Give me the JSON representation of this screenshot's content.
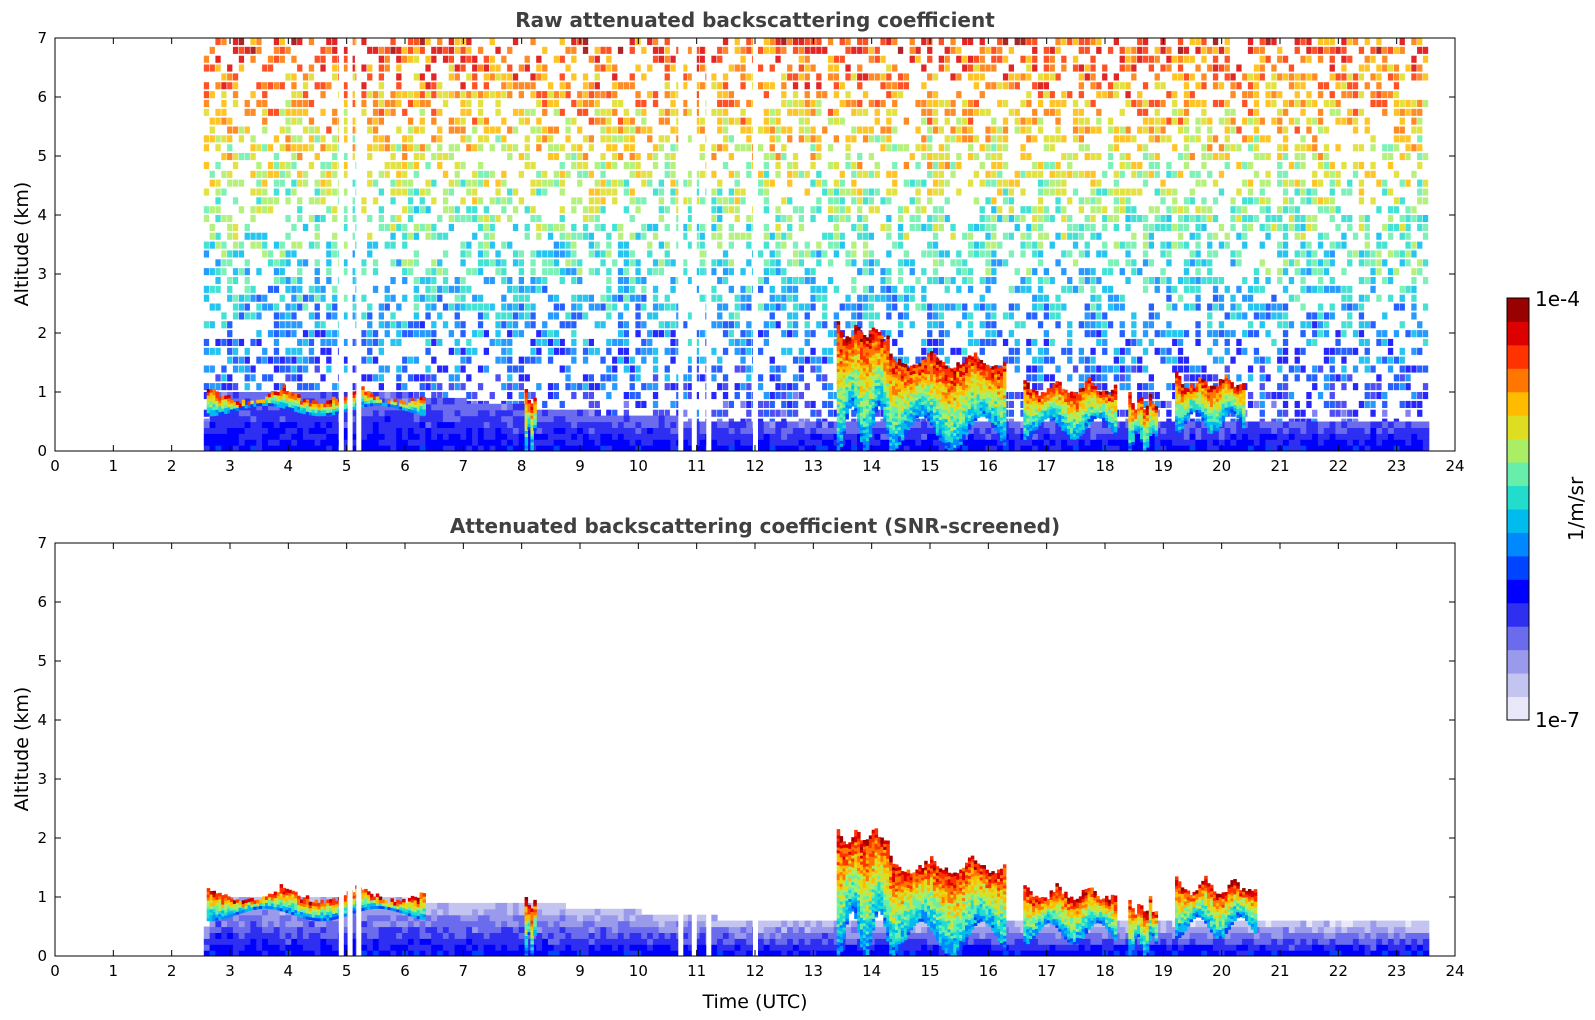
{
  "chart_data": [
    {
      "type": "heatmap",
      "title": "Raw attenuated backscattering coefficient",
      "xlabel": "",
      "ylabel": "Altitude (km)",
      "xlim": [
        0,
        24
      ],
      "ylim": [
        0,
        7
      ],
      "xticks": [
        0,
        1,
        2,
        3,
        4,
        5,
        6,
        7,
        8,
        9,
        10,
        11,
        12,
        13,
        14,
        15,
        16,
        17,
        18,
        19,
        20,
        21,
        22,
        23,
        24
      ],
      "yticks": [
        0,
        1,
        2,
        3,
        4,
        5,
        6,
        7
      ],
      "data_time_range": [
        2.55,
        23.55
      ],
      "missing_data_times": [
        4.9,
        5.05,
        5.2,
        10.72,
        10.95,
        11.2,
        12.0
      ],
      "noisy_background": true,
      "boundary_layer_top_km": [
        [
          2.6,
          1.0
        ],
        [
          6.0,
          0.9
        ],
        [
          8.0,
          0.7
        ],
        [
          12.0,
          0.4
        ],
        [
          23.5,
          0.5
        ]
      ],
      "cloud_features": [
        {
          "t_start": 2.6,
          "t_end": 6.3,
          "base_km": 0.6,
          "top_km": 1.1
        },
        {
          "t_start": 8.05,
          "t_end": 8.25,
          "base_km": 0.0,
          "top_km": 1.05
        },
        {
          "t_start": 13.4,
          "t_end": 14.3,
          "base_km": 0.0,
          "top_km": 2.2
        },
        {
          "t_start": 14.3,
          "t_end": 16.3,
          "base_km": 0.0,
          "top_km": 1.7
        },
        {
          "t_start": 16.6,
          "t_end": 18.2,
          "base_km": 0.2,
          "top_km": 1.25
        },
        {
          "t_start": 18.4,
          "t_end": 18.9,
          "base_km": 0.0,
          "top_km": 1.0
        },
        {
          "t_start": 19.2,
          "t_end": 20.4,
          "base_km": 0.3,
          "top_km": 1.35
        }
      ]
    },
    {
      "type": "heatmap",
      "title": "Attenuated backscattering coefficient (SNR-screened)",
      "xlabel": "Time (UTC)",
      "ylabel": "Altitude (km)",
      "xlim": [
        0,
        24
      ],
      "ylim": [
        0,
        7
      ],
      "xticks": [
        0,
        1,
        2,
        3,
        4,
        5,
        6,
        7,
        8,
        9,
        10,
        11,
        12,
        13,
        14,
        15,
        16,
        17,
        18,
        19,
        20,
        21,
        22,
        23,
        24
      ],
      "yticks": [
        0,
        1,
        2,
        3,
        4,
        5,
        6,
        7
      ],
      "data_time_range": [
        2.55,
        23.55
      ],
      "missing_data_times": [
        4.9,
        5.05,
        5.2,
        10.72,
        10.95,
        11.2,
        12.0
      ],
      "noisy_background": false,
      "boundary_layer_top_km": [
        [
          2.6,
          1.0
        ],
        [
          6.0,
          0.9
        ],
        [
          8.0,
          0.85
        ],
        [
          10.0,
          0.7
        ],
        [
          12.0,
          0.55
        ],
        [
          23.5,
          0.5
        ]
      ],
      "cloud_features": [
        {
          "t_start": 2.6,
          "t_end": 6.3,
          "base_km": 0.6,
          "top_km": 1.2
        },
        {
          "t_start": 8.05,
          "t_end": 8.25,
          "base_km": 0.0,
          "top_km": 1.05
        },
        {
          "t_start": 13.4,
          "t_end": 14.3,
          "base_km": 0.0,
          "top_km": 2.2
        },
        {
          "t_start": 14.3,
          "t_end": 16.3,
          "base_km": 0.0,
          "top_km": 1.7
        },
        {
          "t_start": 16.6,
          "t_end": 18.2,
          "base_km": 0.2,
          "top_km": 1.25
        },
        {
          "t_start": 18.4,
          "t_end": 18.9,
          "base_km": 0.0,
          "top_km": 1.0
        },
        {
          "t_start": 19.2,
          "t_end": 20.6,
          "base_km": 0.3,
          "top_km": 1.35
        }
      ]
    }
  ],
  "colorbar": {
    "label": "1/m/sr",
    "min_label": "1e-7",
    "max_label": "1e-4",
    "scale": "log",
    "colors": [
      "#e8e8f8",
      "#c4c4f0",
      "#9a9aec",
      "#6b6bee",
      "#2f2ff2",
      "#0000ff",
      "#0044ff",
      "#0088ff",
      "#00bbee",
      "#22ddcc",
      "#66eeaa",
      "#aaee66",
      "#dddd22",
      "#ffbb00",
      "#ff7700",
      "#ff3300",
      "#dd0000",
      "#990000"
    ]
  }
}
